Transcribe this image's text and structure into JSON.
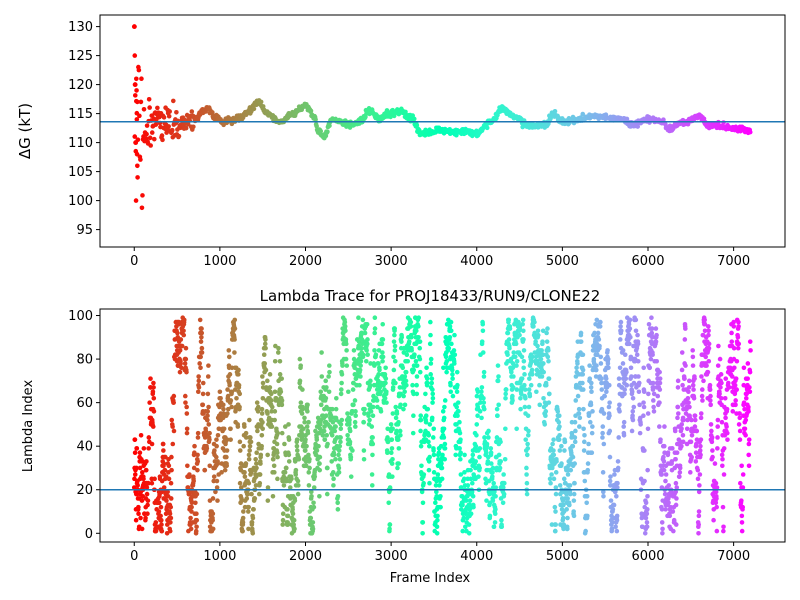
{
  "chart_data": [
    {
      "type": "scatter",
      "title": "",
      "xlabel": "",
      "ylabel": "ΔG (kT)",
      "xlim": [
        -400,
        7600
      ],
      "ylim": [
        92,
        132
      ],
      "xticks": [
        "0",
        "1000",
        "2000",
        "3000",
        "4000",
        "5000",
        "6000",
        "7000"
      ],
      "xtick_values": [
        0,
        1000,
        2000,
        3000,
        4000,
        5000,
        6000,
        7000
      ],
      "yticks": [
        "95",
        "100",
        "105",
        "110",
        "115",
        "120",
        "125",
        "130"
      ],
      "ytick_values": [
        95,
        100,
        105,
        110,
        115,
        120,
        125,
        130
      ],
      "hline": 113.6,
      "hline_color": "#1f77b4",
      "grid": false,
      "colormap": "rainbow (red at frame 0 to violet at last frame)",
      "frames": 7200,
      "trace_knots": [
        [
          0,
          116
        ],
        [
          150,
          113
        ],
        [
          300,
          114
        ],
        [
          500,
          113
        ],
        [
          700,
          114
        ],
        [
          850,
          116
        ],
        [
          950,
          114.5
        ],
        [
          1050,
          113.5
        ],
        [
          1200,
          114
        ],
        [
          1350,
          115.5
        ],
        [
          1450,
          117
        ],
        [
          1550,
          115
        ],
        [
          1700,
          113.5
        ],
        [
          1850,
          115
        ],
        [
          2000,
          116.5
        ],
        [
          2100,
          114.5
        ],
        [
          2150,
          112
        ],
        [
          2220,
          111
        ],
        [
          2300,
          114
        ],
        [
          2450,
          113.5
        ],
        [
          2550,
          113
        ],
        [
          2650,
          114
        ],
        [
          2750,
          115.5
        ],
        [
          2850,
          114
        ],
        [
          2950,
          115
        ],
        [
          3100,
          115.5
        ],
        [
          3250,
          114
        ],
        [
          3350,
          111.5
        ],
        [
          3600,
          112
        ],
        [
          3800,
          112
        ],
        [
          4000,
          111.5
        ],
        [
          4150,
          113.5
        ],
        [
          4300,
          115.8
        ],
        [
          4450,
          114.5
        ],
        [
          4600,
          113
        ],
        [
          4800,
          113
        ],
        [
          4900,
          115
        ],
        [
          5000,
          113.5
        ],
        [
          5200,
          114
        ],
        [
          5400,
          114.5
        ],
        [
          5700,
          114
        ],
        [
          5800,
          113.2
        ],
        [
          6000,
          114
        ],
        [
          6150,
          113.8
        ],
        [
          6250,
          112.2
        ],
        [
          6400,
          113.5
        ],
        [
          6600,
          114.5
        ],
        [
          6700,
          113
        ],
        [
          7000,
          112.5
        ],
        [
          7180,
          112
        ]
      ]
    },
    {
      "type": "scatter",
      "title": "Lambda Trace for PROJ18433/RUN9/CLONE22",
      "xlabel": "Frame Index",
      "ylabel": "Lambda Index",
      "xlim": [
        -400,
        7600
      ],
      "ylim": [
        -4,
        103
      ],
      "xticks": [
        "0",
        "1000",
        "2000",
        "3000",
        "4000",
        "5000",
        "6000",
        "7000"
      ],
      "xtick_values": [
        0,
        1000,
        2000,
        3000,
        4000,
        5000,
        6000,
        7000
      ],
      "yticks": [
        "0",
        "20",
        "40",
        "60",
        "80",
        "100"
      ],
      "ytick_values": [
        0,
        20,
        40,
        60,
        80,
        100
      ],
      "hline": 20,
      "hline_color": "#1f77b4",
      "grid": false,
      "colormap": "rainbow (red at frame 0 to violet at last frame)",
      "frames": 7200,
      "value_range": [
        0,
        99
      ]
    }
  ]
}
